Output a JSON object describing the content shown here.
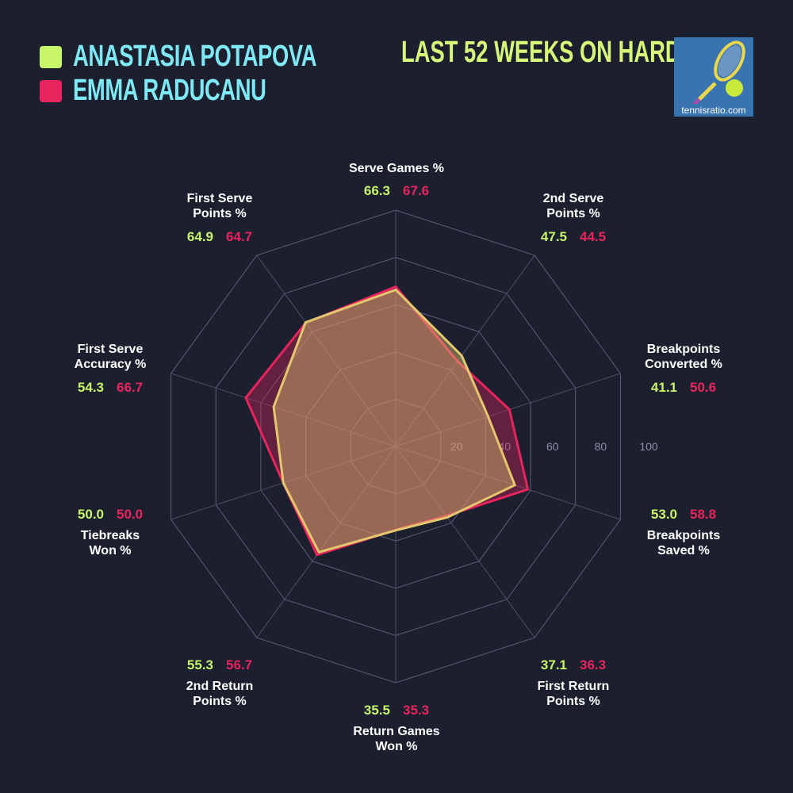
{
  "legend": [
    {
      "name": "ANASTASIA POTAPOVA",
      "color": "#c8f56a"
    },
    {
      "name": "EMMA RADUCANU",
      "color": "#e8245e"
    }
  ],
  "title": "LAST 52 WEEKS ON HARD",
  "logo": {
    "text": "tennisratio.com"
  },
  "chart_data": {
    "type": "radar",
    "axes": [
      "Serve Games %",
      "2nd Serve Points %",
      "Breakpoints Converted %",
      "Breakpoints Saved %",
      "First Return Points %",
      "Return Games Won %",
      "2nd Return Points %",
      "Tiebreaks Won %",
      "First Serve Accuracy %",
      "First Serve Points %"
    ],
    "axis_label_lines": [
      [
        "Serve Games %"
      ],
      [
        "2nd Serve",
        "Points %"
      ],
      [
        "Breakpoints",
        "Converted %"
      ],
      [
        "Breakpoints",
        "Saved %"
      ],
      [
        "First Return",
        "Points %"
      ],
      [
        "Return Games",
        "Won %"
      ],
      [
        "2nd Return",
        "Points %"
      ],
      [
        "Tiebreaks",
        "Won %"
      ],
      [
        "First Serve",
        "Accuracy %"
      ],
      [
        "First Serve",
        "Points %"
      ]
    ],
    "range": [
      0,
      100
    ],
    "ticks": [
      "20",
      "40",
      "60",
      "80",
      "100"
    ],
    "grid": true,
    "series": [
      {
        "name": "ANASTASIA POTAPOVA",
        "color": "#c8f56a",
        "stroke": "#e3c76e",
        "values": [
          66.3,
          47.5,
          41.1,
          53.0,
          37.1,
          35.5,
          55.3,
          50.0,
          54.3,
          64.9
        ],
        "labels": [
          "66.3",
          "47.5",
          "41.1",
          "53.0",
          "37.1",
          "35.5",
          "55.3",
          "50.0",
          "54.3",
          "64.9"
        ]
      },
      {
        "name": "EMMA RADUCANU",
        "color": "#e8245e",
        "stroke": "#e8245e",
        "values": [
          67.6,
          44.5,
          50.6,
          58.8,
          36.3,
          35.3,
          56.7,
          50.0,
          66.7,
          64.7
        ],
        "labels": [
          "67.6",
          "44.5",
          "50.6",
          "58.8",
          "36.3",
          "35.3",
          "56.7",
          "50.0",
          "66.7",
          "64.7"
        ]
      }
    ]
  }
}
